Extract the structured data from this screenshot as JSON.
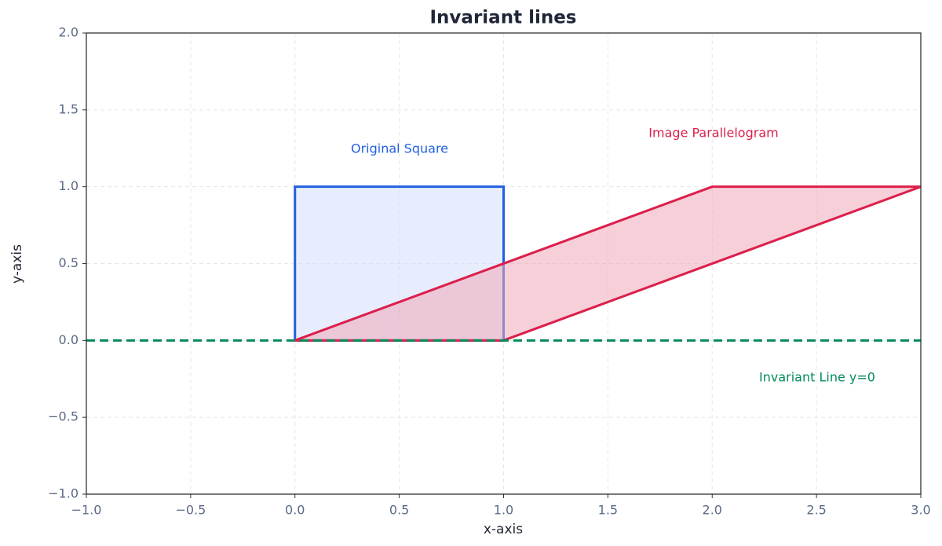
{
  "chart_data": {
    "type": "line",
    "title": "Invariant lines",
    "x_label": "x-axis",
    "y_label": "y-axis",
    "xlim": [
      -1,
      3
    ],
    "ylim": [
      -1,
      2
    ],
    "xticks": [
      {
        "value": -1,
        "label": "−1.0"
      },
      {
        "value": -0.5,
        "label": "−0.5"
      },
      {
        "value": 0,
        "label": "0.0"
      },
      0.5,
      {
        "value": 1,
        "label": "1.0"
      },
      1.5,
      {
        "value": 2,
        "label": "2.0"
      },
      2.5,
      {
        "value": 3,
        "label": "3.0"
      }
    ],
    "yticks": [
      {
        "value": -1,
        "label": "−1.0"
      },
      {
        "value": -0.5,
        "label": "−0.5"
      },
      {
        "value": 0,
        "label": "0.0"
      },
      0.5,
      {
        "value": 1,
        "label": "1.0"
      },
      1.5,
      {
        "value": 2,
        "label": "2.0"
      }
    ],
    "grid": true,
    "series": [
      {
        "name": "Original Square",
        "color": "#2160e0",
        "fill": "#d4dffa",
        "x": [
          0,
          1,
          1,
          0,
          0
        ],
        "y": [
          0,
          0,
          1,
          1,
          0
        ]
      },
      {
        "name": "Image Parallelogram",
        "color": "#dc1f4b",
        "fill": "#f0a8ba",
        "x": [
          0,
          1,
          3,
          2,
          0
        ],
        "y": [
          0,
          0,
          1,
          1,
          0
        ]
      },
      {
        "name": "Invariant Line y=0",
        "color": "#068a58",
        "dashed": true,
        "x": [
          -1,
          3
        ],
        "y": [
          0,
          0
        ]
      }
    ]
  }
}
